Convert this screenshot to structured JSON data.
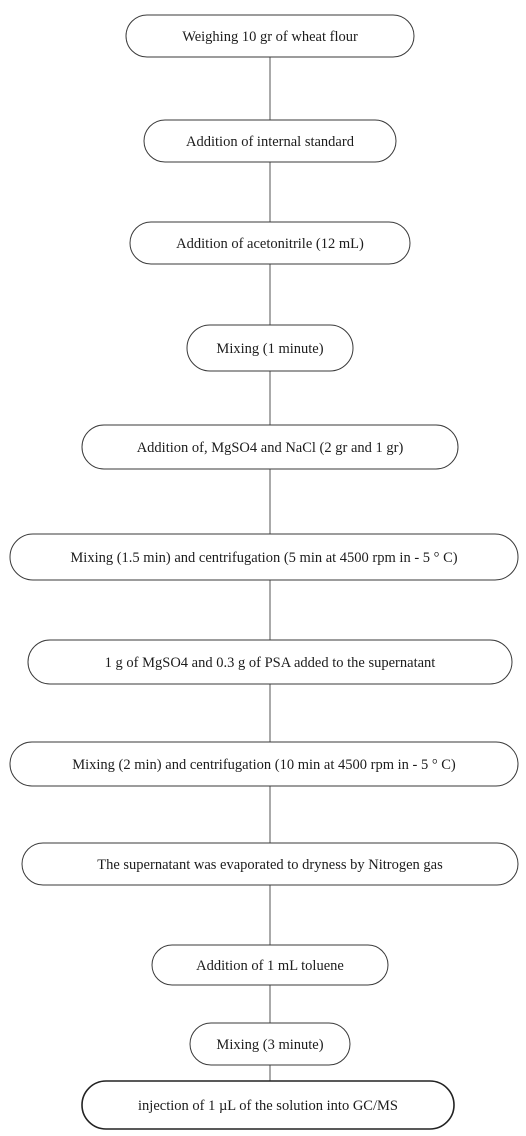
{
  "flowchart": {
    "steps": [
      {
        "label": "Weighing 10 gr of wheat flour"
      },
      {
        "label": "Addition of internal standard"
      },
      {
        "label": "Addition of acetonitrile (12 mL)"
      },
      {
        "label": "Mixing (1 minute)"
      },
      {
        "label": "Addition of, MgSO4 and NaCl (2 gr and 1 gr)"
      },
      {
        "label": "Mixing (1.5 min) and centrifugation (5 min at 4500 rpm in - 5 ° C)"
      },
      {
        "label": "1 g of MgSO4 and 0.3 g of PSA added to the supernatant"
      },
      {
        "label": "Mixing (2 min) and centrifugation (10 min at 4500 rpm in - 5 ° C)"
      },
      {
        "label": "The supernatant was evaporated to dryness by Nitrogen gas"
      },
      {
        "label": "Addition of  1 mL toluene"
      },
      {
        "label": "Mixing (3 minute)"
      },
      {
        "label": "injection of  1 µL of the solution into GC/MS"
      }
    ],
    "colors": {
      "stroke": "#3a3a3a",
      "text": "#1c1c1c",
      "connector": "#555555"
    }
  }
}
